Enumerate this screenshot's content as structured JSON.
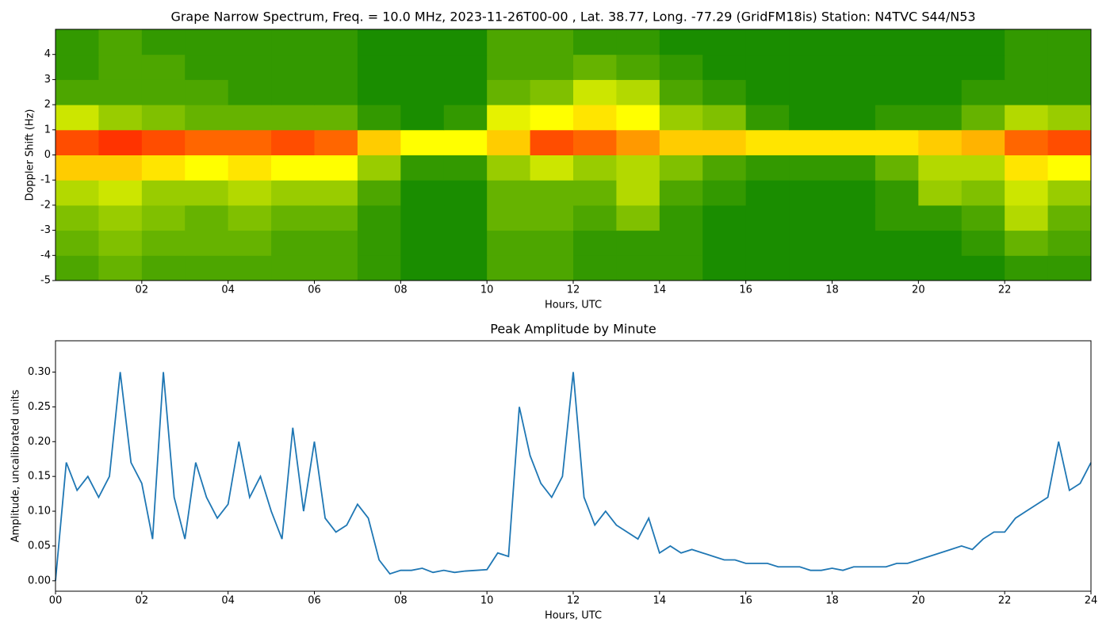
{
  "chart_data": [
    {
      "type": "heatmap",
      "title": "Grape Narrow Spectrum, Freq. = 10.0 MHz, 2023-11-26T00-00 , Lat.  38.77, Long. -77.29 (GridFM18is) Station: N4TVC S44/N53",
      "xlabel": "Hours, UTC",
      "ylabel": "Doppler Shift (Hz)",
      "xlim": [
        0,
        24
      ],
      "ylim": [
        -5,
        5
      ],
      "xticks": [
        {
          "value": 2,
          "label": "02"
        },
        {
          "value": 4,
          "label": "04"
        },
        {
          "value": 6,
          "label": "06"
        },
        {
          "value": 8,
          "label": "08"
        },
        10,
        12,
        14,
        16,
        18,
        20,
        22
      ],
      "yticks": [
        -5,
        -4,
        -3,
        -2,
        -1,
        0,
        1,
        2,
        3,
        4
      ],
      "colormap": [
        "#008000",
        "#ffff00",
        "#ff0000"
      ],
      "x_bins": [
        0,
        1,
        2,
        3,
        4,
        5,
        6,
        7,
        8,
        9,
        10,
        11,
        12,
        13,
        14,
        15,
        16,
        17,
        18,
        19,
        20,
        21,
        22,
        23,
        24
      ],
      "y_bins": [
        -5,
        -4,
        -3,
        -2,
        -1,
        0,
        1,
        2,
        3,
        4,
        5
      ],
      "z": [
        [
          0.15,
          0.2,
          0.15,
          0.15,
          0.15,
          0.15,
          0.15,
          0.1,
          0.05,
          0.05,
          0.15,
          0.15,
          0.1,
          0.1,
          0.1,
          0.05,
          0.05,
          0.05,
          0.05,
          0.05,
          0.05,
          0.05,
          0.1,
          0.1
        ],
        [
          0.2,
          0.25,
          0.2,
          0.2,
          0.2,
          0.15,
          0.15,
          0.1,
          0.05,
          0.05,
          0.15,
          0.15,
          0.1,
          0.1,
          0.1,
          0.05,
          0.05,
          0.05,
          0.05,
          0.05,
          0.05,
          0.1,
          0.2,
          0.15
        ],
        [
          0.25,
          0.3,
          0.25,
          0.2,
          0.25,
          0.2,
          0.2,
          0.1,
          0.05,
          0.05,
          0.2,
          0.2,
          0.15,
          0.25,
          0.1,
          0.05,
          0.05,
          0.05,
          0.05,
          0.1,
          0.1,
          0.15,
          0.35,
          0.2
        ],
        [
          0.35,
          0.4,
          0.3,
          0.3,
          0.35,
          0.3,
          0.3,
          0.15,
          0.05,
          0.05,
          0.2,
          0.2,
          0.2,
          0.35,
          0.15,
          0.1,
          0.05,
          0.05,
          0.05,
          0.1,
          0.3,
          0.25,
          0.4,
          0.3
        ],
        [
          0.6,
          0.6,
          0.55,
          0.5,
          0.55,
          0.5,
          0.5,
          0.3,
          0.1,
          0.1,
          0.3,
          0.4,
          0.3,
          0.35,
          0.25,
          0.15,
          0.1,
          0.1,
          0.1,
          0.2,
          0.35,
          0.35,
          0.55,
          0.5
        ],
        [
          0.85,
          0.9,
          0.85,
          0.8,
          0.8,
          0.85,
          0.8,
          0.6,
          0.5,
          0.5,
          0.6,
          0.85,
          0.8,
          0.7,
          0.6,
          0.6,
          0.55,
          0.55,
          0.55,
          0.55,
          0.6,
          0.65,
          0.8,
          0.85
        ],
        [
          0.4,
          0.3,
          0.25,
          0.2,
          0.2,
          0.2,
          0.2,
          0.1,
          0.05,
          0.1,
          0.45,
          0.5,
          0.55,
          0.5,
          0.3,
          0.25,
          0.1,
          0.05,
          0.05,
          0.1,
          0.1,
          0.2,
          0.35,
          0.3
        ],
        [
          0.15,
          0.15,
          0.15,
          0.15,
          0.1,
          0.1,
          0.1,
          0.05,
          0.05,
          0.05,
          0.2,
          0.25,
          0.4,
          0.35,
          0.15,
          0.1,
          0.05,
          0.05,
          0.05,
          0.05,
          0.05,
          0.1,
          0.1,
          0.1
        ],
        [
          0.1,
          0.15,
          0.15,
          0.1,
          0.1,
          0.1,
          0.1,
          0.05,
          0.05,
          0.05,
          0.15,
          0.15,
          0.2,
          0.15,
          0.1,
          0.05,
          0.05,
          0.05,
          0.05,
          0.05,
          0.05,
          0.05,
          0.1,
          0.1
        ],
        [
          0.1,
          0.15,
          0.1,
          0.1,
          0.1,
          0.1,
          0.1,
          0.05,
          0.05,
          0.05,
          0.15,
          0.15,
          0.1,
          0.1,
          0.05,
          0.05,
          0.05,
          0.05,
          0.05,
          0.05,
          0.05,
          0.05,
          0.1,
          0.1
        ]
      ]
    },
    {
      "type": "line",
      "title": "Peak Amplitude by Minute",
      "xlabel": "Hours, UTC",
      "ylabel": "Amplitude, uncalibrated units",
      "xlim": [
        0,
        24
      ],
      "ylim": [
        -0.015,
        0.345
      ],
      "xticks": [
        {
          "value": 0,
          "label": "00"
        },
        {
          "value": 2,
          "label": "02"
        },
        {
          "value": 4,
          "label": "04"
        },
        {
          "value": 6,
          "label": "06"
        },
        {
          "value": 8,
          "label": "08"
        },
        10,
        12,
        14,
        16,
        18,
        20,
        22,
        24
      ],
      "yticks": [
        {
          "value": 0,
          "label": "0.00"
        },
        {
          "value": 0.05,
          "label": "0.05"
        },
        {
          "value": 0.1,
          "label": "0.10"
        },
        {
          "value": 0.15,
          "label": "0.15"
        },
        {
          "value": 0.2,
          "label": "0.20"
        },
        {
          "value": 0.25,
          "label": "0.25"
        },
        {
          "value": 0.3,
          "label": "0.30"
        }
      ],
      "color": "#1f77b4",
      "x": [
        0,
        0.25,
        0.5,
        0.75,
        1,
        1.25,
        1.5,
        1.75,
        2,
        2.25,
        2.5,
        2.75,
        3,
        3.25,
        3.5,
        3.75,
        4,
        4.25,
        4.5,
        4.75,
        5,
        5.25,
        5.5,
        5.75,
        6,
        6.25,
        6.5,
        6.75,
        7,
        7.25,
        7.5,
        7.75,
        8,
        8.25,
        8.5,
        8.75,
        9,
        9.25,
        9.5,
        9.75,
        10,
        10.25,
        10.5,
        10.75,
        11,
        11.25,
        11.5,
        11.75,
        12,
        12.25,
        12.5,
        12.75,
        13,
        13.25,
        13.5,
        13.75,
        14,
        14.25,
        14.5,
        14.75,
        15,
        15.25,
        15.5,
        15.75,
        16,
        16.25,
        16.5,
        16.75,
        17,
        17.25,
        17.5,
        17.75,
        18,
        18.25,
        18.5,
        18.75,
        19,
        19.25,
        19.5,
        19.75,
        20,
        20.25,
        20.5,
        20.75,
        21,
        21.25,
        21.5,
        21.75,
        22,
        22.25,
        22.5,
        22.75,
        23,
        23.25,
        23.5,
        23.75,
        24
      ],
      "values": [
        0,
        0.17,
        0.13,
        0.15,
        0.12,
        0.15,
        0.3,
        0.17,
        0.14,
        0.06,
        0.3,
        0.12,
        0.06,
        0.17,
        0.12,
        0.09,
        0.11,
        0.2,
        0.12,
        0.15,
        0.1,
        0.06,
        0.22,
        0.1,
        0.2,
        0.09,
        0.07,
        0.08,
        0.11,
        0.09,
        0.03,
        0.01,
        0.015,
        0.015,
        0.018,
        0.012,
        0.015,
        0.012,
        0.014,
        0.015,
        0.016,
        0.04,
        0.035,
        0.25,
        0.18,
        0.14,
        0.12,
        0.15,
        0.3,
        0.12,
        0.08,
        0.1,
        0.08,
        0.07,
        0.06,
        0.09,
        0.04,
        0.05,
        0.04,
        0.045,
        0.04,
        0.035,
        0.03,
        0.03,
        0.025,
        0.025,
        0.025,
        0.02,
        0.02,
        0.02,
        0.015,
        0.015,
        0.018,
        0.015,
        0.02,
        0.02,
        0.02,
        0.02,
        0.025,
        0.025,
        0.03,
        0.035,
        0.04,
        0.045,
        0.05,
        0.045,
        0.06,
        0.07,
        0.07,
        0.09,
        0.1,
        0.11,
        0.12,
        0.2,
        0.13,
        0.14,
        0.17
      ]
    }
  ]
}
